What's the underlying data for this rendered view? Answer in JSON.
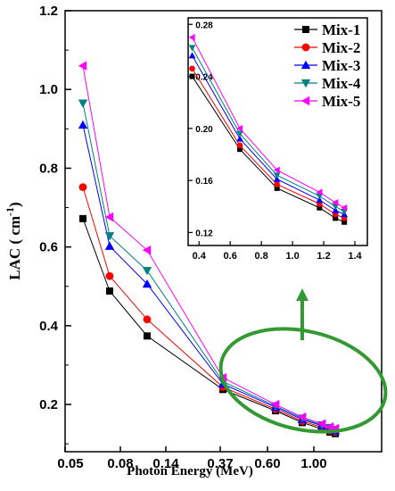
{
  "chart_data": [
    {
      "type": "line",
      "xlabel": "Photon Energy (MeV)",
      "ylabel_main": "LAC ( cm",
      "ylabel_sup": "-1",
      "ylabel_tail": ")",
      "x_tick_labels": [
        "0.05",
        "0.08",
        "0.14",
        "0.37",
        "0.60",
        "1.00"
      ],
      "y_tick_labels": [
        "0.2",
        "0.4",
        "0.6",
        "0.8",
        "1.0",
        "1.2"
      ],
      "ylim": [
        0.08,
        1.2
      ],
      "grid": false,
      "legend": "none",
      "x": [
        "0.0595",
        "0.081",
        "0.122",
        "0.356",
        "0.662",
        "0.9",
        "1.173",
        "1.275",
        "1.332"
      ],
      "series": [
        {
          "name": "Mix-1",
          "color": "#000000",
          "marker": "square",
          "values": [
            0.672,
            0.488,
            0.374,
            0.238,
            0.184,
            0.154,
            0.138,
            0.13,
            0.126
          ]
        },
        {
          "name": "Mix-2",
          "color": "#ff0000",
          "marker": "circle",
          "values": [
            0.752,
            0.526,
            0.416,
            0.244,
            0.188,
            0.158,
            0.142,
            0.134,
            0.13
          ]
        },
        {
          "name": "Mix-3",
          "color": "#0000ff",
          "marker": "triangle-up",
          "values": [
            0.91,
            0.602,
            0.506,
            0.252,
            0.193,
            0.162,
            0.146,
            0.138,
            0.133
          ]
        },
        {
          "name": "Mix-4",
          "color": "#008080",
          "marker": "triangle-down",
          "values": [
            0.965,
            0.628,
            0.54,
            0.258,
            0.196,
            0.165,
            0.148,
            0.141,
            0.136
          ]
        },
        {
          "name": "Mix-5",
          "color": "#ff00ff",
          "marker": "triangle-left",
          "values": [
            1.06,
            0.676,
            0.592,
            0.268,
            0.2,
            0.168,
            0.151,
            0.143,
            0.139
          ]
        }
      ]
    },
    {
      "type": "line",
      "panel": "inset",
      "xlim": [
        0.33,
        1.48
      ],
      "ylim": [
        0.11,
        0.285
      ],
      "x_ticks": [
        0.4,
        0.6,
        0.8,
        1.0,
        1.2,
        1.4
      ],
      "x_tick_labels": [
        "0.4",
        "0.6",
        "0.8",
        "1.0",
        "1.2",
        "1.4"
      ],
      "y_ticks": [
        0.12,
        0.16,
        0.2,
        0.24,
        0.28
      ],
      "y_tick_labels": [
        "0.12",
        "0.16",
        "0.20",
        "0.24",
        "0.28"
      ],
      "grid": false,
      "legend": "top-right",
      "x": [
        0.356,
        0.662,
        0.9,
        1.173,
        1.275,
        1.332
      ],
      "series": [
        {
          "name": "Mix-1",
          "color": "#000000",
          "marker": "square",
          "values": [
            0.24,
            0.184,
            0.154,
            0.139,
            0.131,
            0.128
          ]
        },
        {
          "name": "Mix-2",
          "color": "#ff0000",
          "marker": "circle",
          "values": [
            0.246,
            0.187,
            0.157,
            0.142,
            0.134,
            0.131
          ]
        },
        {
          "name": "Mix-3",
          "color": "#0000ff",
          "marker": "triangle-up",
          "values": [
            0.256,
            0.192,
            0.161,
            0.145,
            0.137,
            0.134
          ]
        },
        {
          "name": "Mix-4",
          "color": "#008080",
          "marker": "triangle-down",
          "values": [
            0.262,
            0.196,
            0.164,
            0.148,
            0.14,
            0.136
          ]
        },
        {
          "name": "Mix-5",
          "color": "#ff00ff",
          "marker": "triangle-left",
          "values": [
            0.27,
            0.2,
            0.168,
            0.151,
            0.143,
            0.139
          ]
        }
      ]
    }
  ],
  "annotation": {
    "color": "#339933"
  }
}
